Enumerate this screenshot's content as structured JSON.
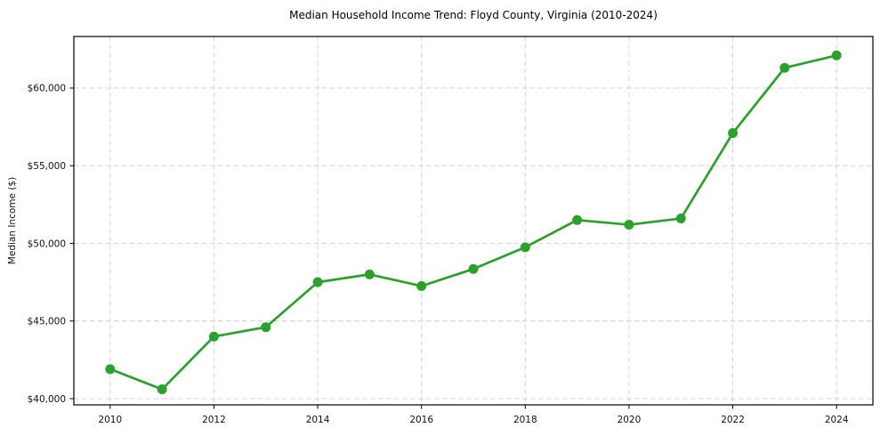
{
  "chart_data": {
    "type": "line",
    "title": "Median Household Income Trend: Floyd County, Virginia (2010-2024)",
    "xlabel": "",
    "ylabel": "Median Income ($)",
    "series_name": "Median Household Income",
    "x": [
      2010,
      2011,
      2012,
      2013,
      2014,
      2015,
      2016,
      2017,
      2018,
      2019,
      2020,
      2021,
      2022,
      2023,
      2024
    ],
    "values": [
      41900,
      40600,
      44000,
      44600,
      47500,
      48000,
      47250,
      48350,
      49750,
      51500,
      51200,
      51600,
      57100,
      61300,
      62100
    ],
    "x_ticks": [
      2010,
      2012,
      2014,
      2016,
      2018,
      2020,
      2022,
      2024
    ],
    "y_ticks": [
      40000,
      45000,
      50000,
      55000,
      60000
    ],
    "y_tick_labels": [
      "$40,000",
      "$45,000",
      "$50,000",
      "$55,000",
      "$60,000"
    ],
    "xlim": [
      2009.3,
      2024.7
    ],
    "ylim": [
      39600,
      63320
    ],
    "grid": true,
    "grid_style": "dashed",
    "legend": "none",
    "line_color": "#2ca02c",
    "marker": "circle",
    "marker_color": "#2ca02c",
    "grid_color": "#cdcdcd",
    "spine_color": "#000000",
    "background_color": "#ffffff"
  }
}
